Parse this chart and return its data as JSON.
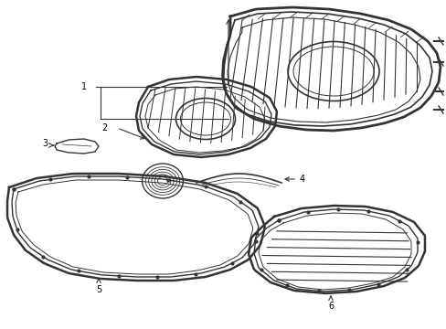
{
  "background_color": "#ffffff",
  "line_color": "#333333",
  "line_width": 1.0,
  "label_color": "#000000",
  "label_fontsize": 7,
  "figsize": [
    4.89,
    3.6
  ],
  "dpi": 100
}
